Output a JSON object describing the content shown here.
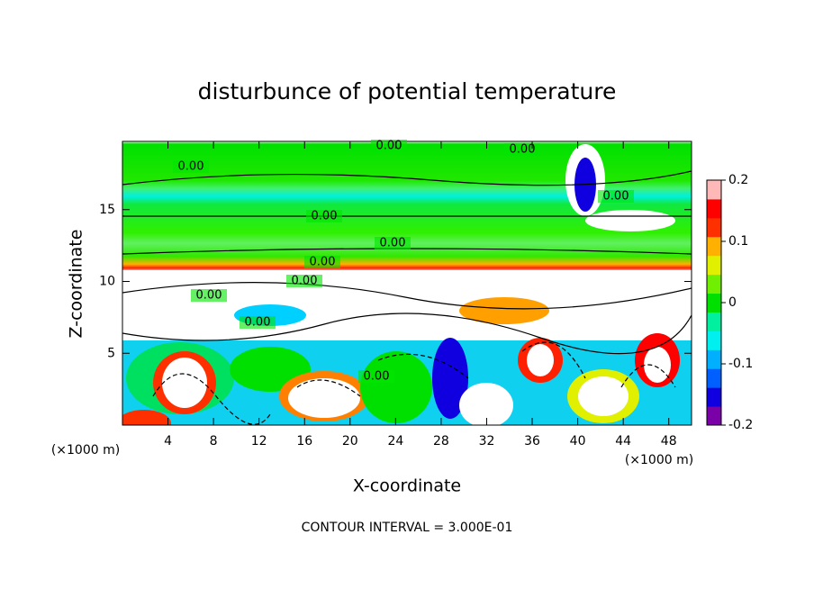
{
  "chart_data": {
    "type": "contour",
    "title": "disturbunce of potential temperature",
    "x_label": "X-coordinate",
    "y_label": "Z-coordinate",
    "x_unit": "(×1000 m)",
    "y_unit": "(×1000 m)",
    "xlim": [
      0,
      50
    ],
    "xticks": [
      4,
      8,
      12,
      16,
      20,
      24,
      28,
      32,
      36,
      40,
      44,
      48
    ],
    "ylim": [
      0,
      19.75
    ],
    "yticks": [
      5,
      10,
      15
    ],
    "colorbar": {
      "lim": [
        -0.2,
        0.2
      ],
      "ticks": [
        -0.2,
        -0.1,
        0,
        0.1,
        0.2
      ],
      "colormap": [
        "#7a00a8",
        "#1000e0",
        "#0060ff",
        "#00b0ff",
        "#00f0f0",
        "#00f0a0",
        "#00e000",
        "#70f000",
        "#e0f000",
        "#ffb000",
        "#ff3000",
        "#ff0000",
        "#ffb8b8"
      ]
    },
    "contour_label": "0.00",
    "note": "CONTOUR INTERVAL = 3.000E-01"
  }
}
